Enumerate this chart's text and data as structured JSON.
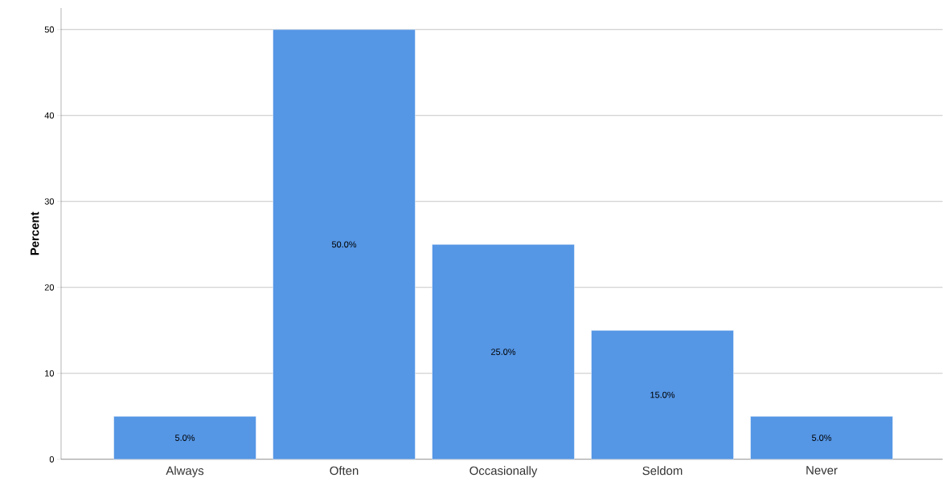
{
  "chart_data": {
    "type": "bar",
    "ylabel": "Percent",
    "categories": [
      "Always",
      "Often",
      "Occasionally",
      "Seldom",
      "Never"
    ],
    "values": [
      5,
      50,
      25,
      15,
      5
    ],
    "value_labels": [
      "5.0%",
      "50.0%",
      "25.0%",
      "15.0%",
      "5.0%"
    ],
    "color": "#5596e5",
    "ylim": [
      0,
      52.5
    ],
    "yticks": [
      0,
      10,
      20,
      30,
      40,
      50
    ],
    "grid": "y"
  }
}
